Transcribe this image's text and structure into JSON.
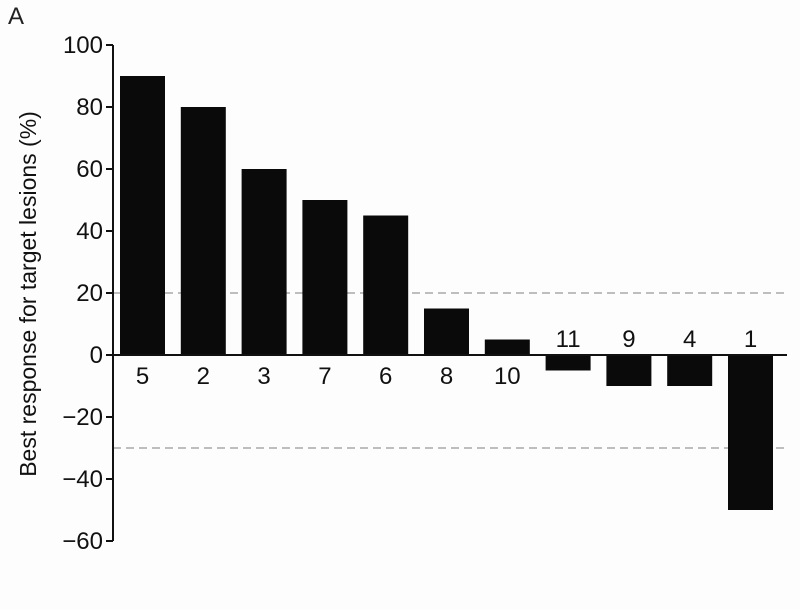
{
  "panel_label": "A",
  "chart_data": {
    "type": "bar",
    "title": "",
    "xlabel": "",
    "ylabel": "Best response for target lesions (%)",
    "ylim": [
      -60,
      100
    ],
    "yticks": [
      100,
      80,
      60,
      40,
      20,
      0,
      -20,
      -40,
      -60
    ],
    "categories": [
      "5",
      "2",
      "3",
      "7",
      "6",
      "8",
      "10",
      "11",
      "9",
      "4",
      "1"
    ],
    "values": [
      90,
      80,
      60,
      50,
      45,
      15,
      5,
      -5,
      -10,
      -10,
      -50
    ],
    "reference_lines": [
      20,
      -30
    ],
    "grid": false,
    "bar_color": "#0a0a0a",
    "reference_line_color": "#aaaaaa"
  }
}
